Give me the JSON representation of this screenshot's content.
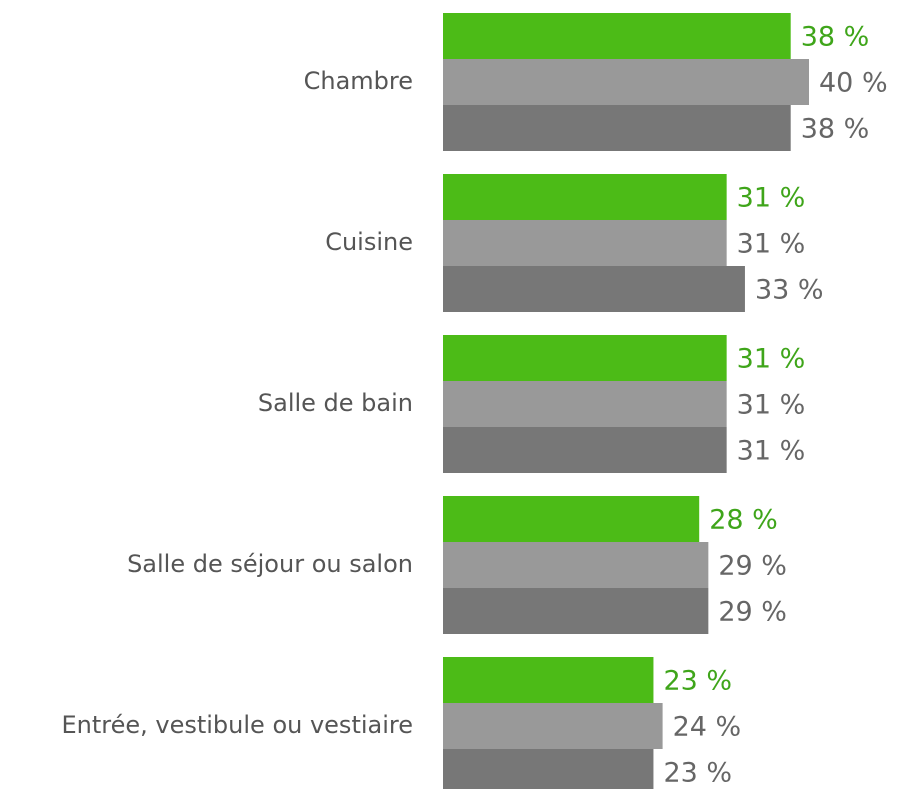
{
  "chart_data": {
    "type": "bar",
    "orientation": "horizontal",
    "categories": [
      "Chambre",
      "Cuisine",
      "Salle de bain",
      "Salle de séjour ou salon",
      "Entrée, vestibule ou vestiaire"
    ],
    "series": [
      {
        "color": "#4cbb17",
        "label_color": "#3fa51a",
        "values": [
          38,
          31,
          31,
          28,
          23
        ],
        "value_labels": [
          "38 %",
          "31 %",
          "31 %",
          "28 %",
          "23 %"
        ]
      },
      {
        "color": "#999999",
        "label_color": "#666666",
        "values": [
          40,
          31,
          31,
          29,
          24
        ],
        "value_labels": [
          "40 %",
          "31 %",
          "31 %",
          "29 %",
          "24 %"
        ]
      },
      {
        "color": "#777777",
        "label_color": "#666666",
        "values": [
          38,
          33,
          31,
          29,
          23
        ],
        "value_labels": [
          "38 %",
          "33 %",
          "31 %",
          "29 %",
          "23 %"
        ]
      }
    ]
  }
}
